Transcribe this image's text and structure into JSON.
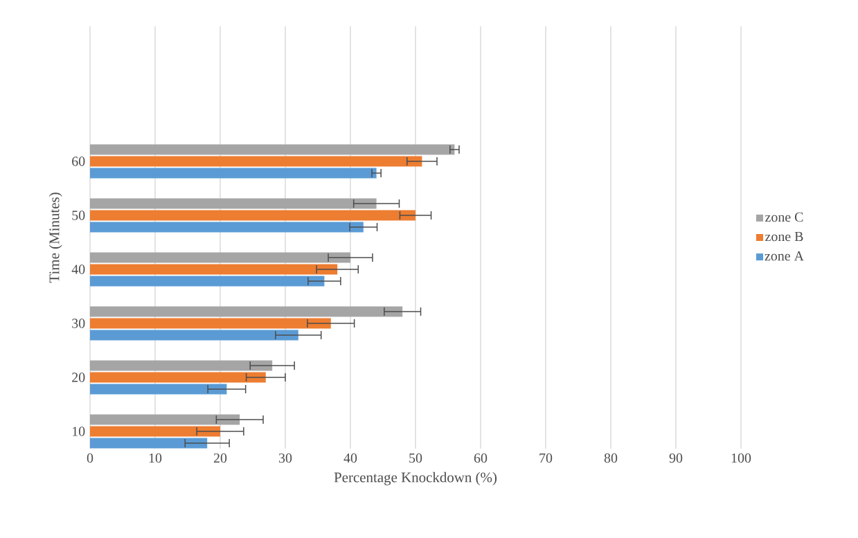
{
  "chart_data": {
    "type": "bar",
    "orientation": "horizontal",
    "xlabel": "Percentage Knockdown (%)",
    "ylabel": "Time (Minutes)",
    "categories": [
      "60",
      "50",
      "40",
      "30",
      "20",
      "10"
    ],
    "series": [
      {
        "name": "zone A",
        "color": "#5b9bd5",
        "values": [
          44,
          42,
          36,
          32,
          21,
          18
        ],
        "errors": [
          0.7,
          2.1,
          2.5,
          3.5,
          2.9,
          3.4
        ]
      },
      {
        "name": "zone B",
        "color": "#ed7d31",
        "values": [
          51,
          50,
          38,
          37,
          27,
          20
        ],
        "errors": [
          2.3,
          2.4,
          3.2,
          3.6,
          3.0,
          3.6
        ]
      },
      {
        "name": "zone C",
        "color": "#a5a5a5",
        "values": [
          56,
          44,
          40,
          48,
          28,
          23
        ],
        "errors": [
          0.7,
          3.5,
          3.4,
          2.8,
          3.4,
          3.6
        ]
      }
    ],
    "xlim": [
      0,
      100
    ],
    "xticks": [
      0,
      10,
      20,
      30,
      40,
      50,
      60,
      70,
      80,
      90,
      100
    ],
    "grid": "x",
    "legend": "right"
  }
}
